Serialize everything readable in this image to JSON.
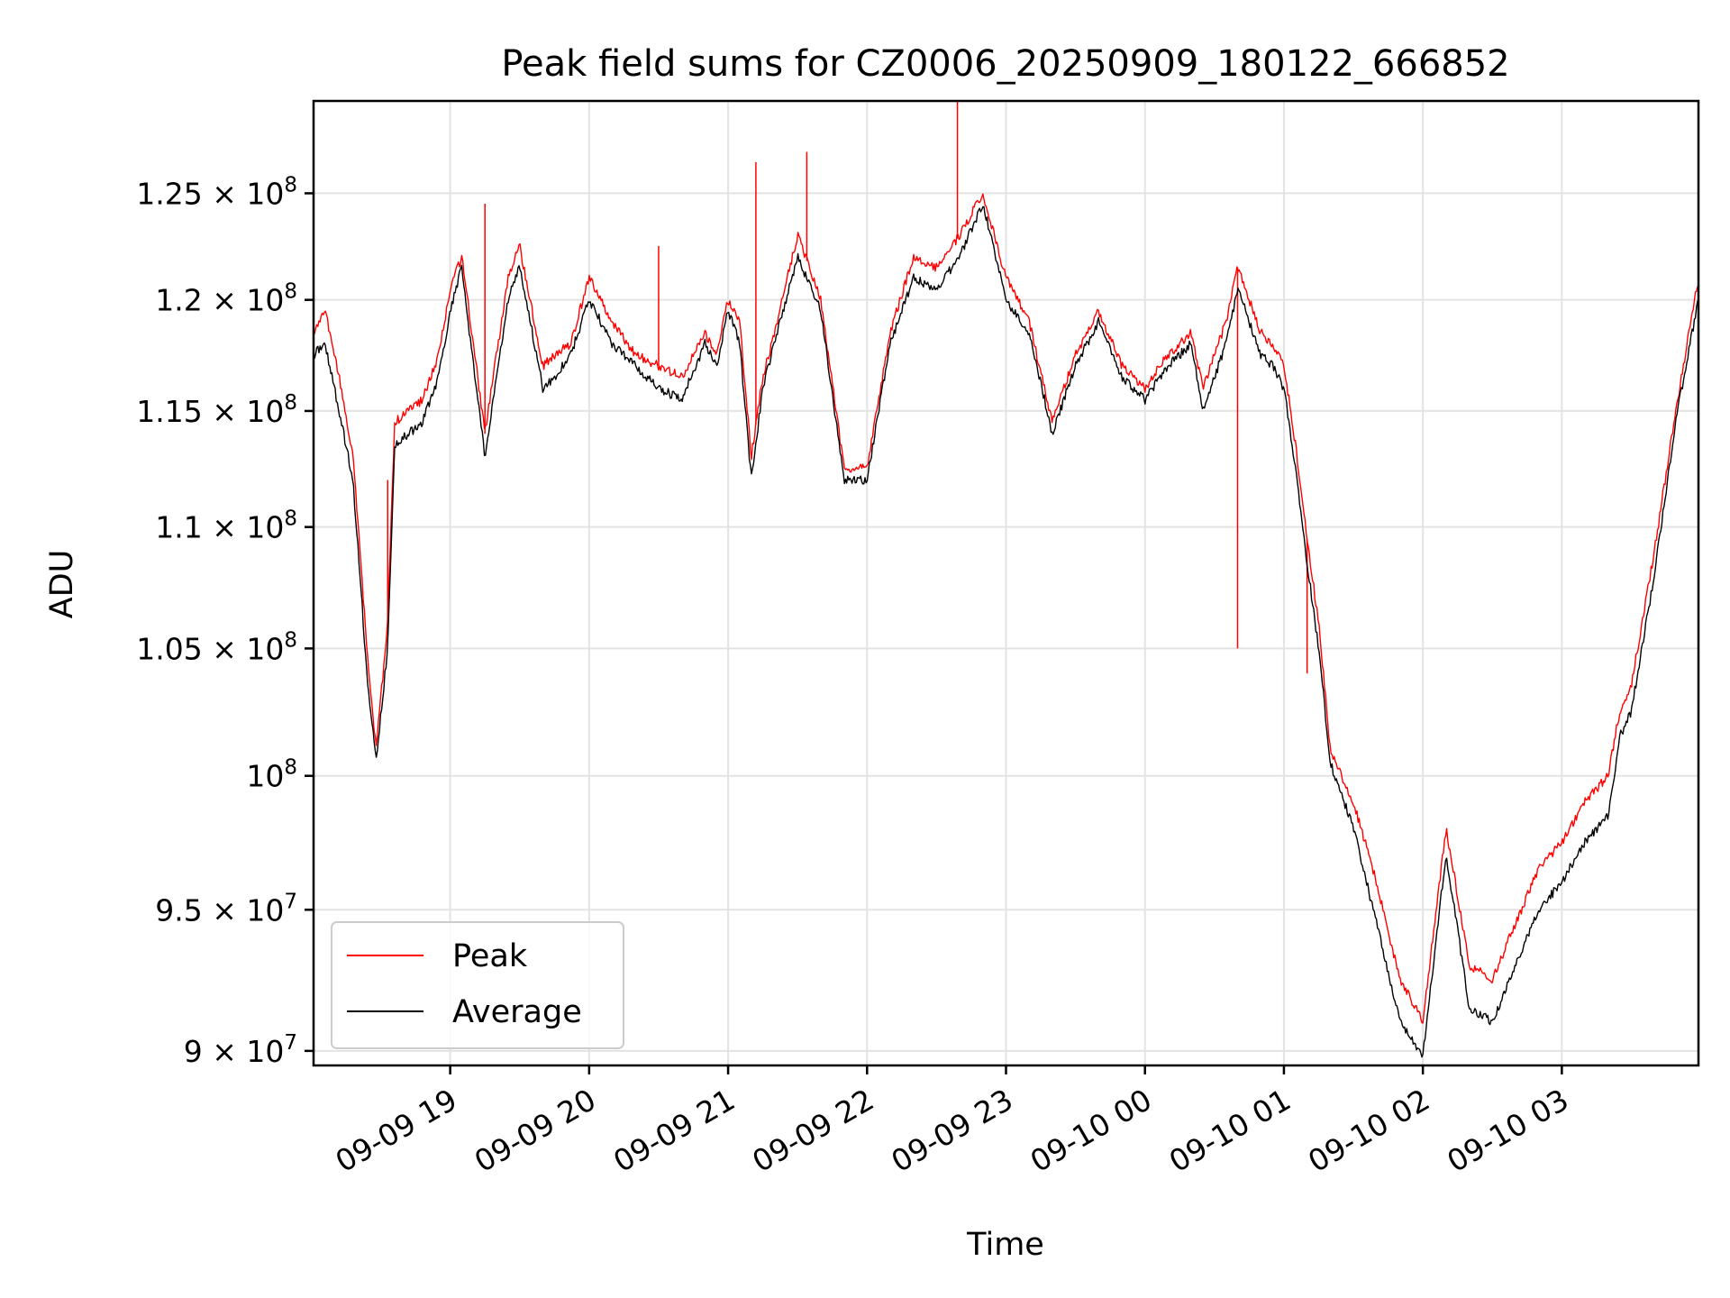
{
  "chart_data": {
    "type": "line",
    "title": "Peak field sums for CZ0006_20250909_180122_666852",
    "xlabel": "Time",
    "ylabel": "ADU",
    "y_scale": "log",
    "xlim": [
      "2025-09-09 18:01",
      "2025-09-10 03:59"
    ],
    "ylim": [
      89500000,
      129500000
    ],
    "grid": true,
    "legend_position": "lower-left",
    "x_ticks": [
      {
        "value": "2025-09-09 19:00",
        "label": "09-09 19"
      },
      {
        "value": "2025-09-09 20:00",
        "label": "09-09 20"
      },
      {
        "value": "2025-09-09 21:00",
        "label": "09-09 21"
      },
      {
        "value": "2025-09-09 22:00",
        "label": "09-09 22"
      },
      {
        "value": "2025-09-09 23:00",
        "label": "09-09 23"
      },
      {
        "value": "2025-09-10 00:00",
        "label": "09-10 00"
      },
      {
        "value": "2025-09-10 01:00",
        "label": "09-10 01"
      },
      {
        "value": "2025-09-10 02:00",
        "label": "09-10 02"
      },
      {
        "value": "2025-09-10 03:00",
        "label": "09-10 03"
      }
    ],
    "y_ticks": [
      {
        "value": 90000000,
        "mantissa": "9",
        "exponent": "7"
      },
      {
        "value": 95000000,
        "mantissa": "9.5",
        "exponent": "7"
      },
      {
        "value": 100000000,
        "mantissa": "",
        "exponent": "8"
      },
      {
        "value": 105000000,
        "mantissa": "1.05",
        "exponent": "8"
      },
      {
        "value": 110000000,
        "mantissa": "1.1",
        "exponent": "8"
      },
      {
        "value": 115000000,
        "mantissa": "1.15",
        "exponent": "8"
      },
      {
        "value": 120000000,
        "mantissa": "1.2",
        "exponent": "8"
      },
      {
        "value": 125000000,
        "mantissa": "1.25",
        "exponent": "8"
      }
    ],
    "series": [
      {
        "name": "Peak",
        "color": "#ff0000",
        "x": [
          "2025-09-09 18:01",
          "2025-09-09 18:06",
          "2025-09-09 18:12",
          "2025-09-09 18:18",
          "2025-09-09 18:24",
          "2025-09-09 18:28",
          "2025-09-09 18:33",
          "2025-09-09 18:36",
          "2025-09-09 18:48",
          "2025-09-09 18:55",
          "2025-09-09 19:00",
          "2025-09-09 19:05",
          "2025-09-09 19:10",
          "2025-09-09 19:15",
          "2025-09-09 19:25",
          "2025-09-09 19:30",
          "2025-09-09 19:40",
          "2025-09-09 19:45",
          "2025-09-09 19:52",
          "2025-09-09 20:00",
          "2025-09-09 20:10",
          "2025-09-09 20:20",
          "2025-09-09 20:30",
          "2025-09-09 20:40",
          "2025-09-09 20:50",
          "2025-09-09 20:55",
          "2025-09-09 21:00",
          "2025-09-09 21:05",
          "2025-09-09 21:10",
          "2025-09-09 21:15",
          "2025-09-09 21:20",
          "2025-09-09 21:30",
          "2025-09-09 21:40",
          "2025-09-09 21:50",
          "2025-09-09 22:00",
          "2025-09-09 22:10",
          "2025-09-09 22:20",
          "2025-09-09 22:30",
          "2025-09-09 22:40",
          "2025-09-09 22:50",
          "2025-09-09 23:00",
          "2025-09-09 23:10",
          "2025-09-09 23:20",
          "2025-09-09 23:30",
          "2025-09-09 23:40",
          "2025-09-09 23:50",
          "2025-09-10 00:00",
          "2025-09-10 00:10",
          "2025-09-10 00:20",
          "2025-09-10 00:25",
          "2025-09-10 00:35",
          "2025-09-10 00:40",
          "2025-09-10 00:50",
          "2025-09-10 00:55",
          "2025-09-10 01:00",
          "2025-09-10 01:05",
          "2025-09-10 01:10",
          "2025-09-10 01:15",
          "2025-09-10 01:20",
          "2025-09-10 01:30",
          "2025-09-10 01:40",
          "2025-09-10 01:50",
          "2025-09-10 02:00",
          "2025-09-10 02:10",
          "2025-09-10 02:20",
          "2025-09-10 02:30",
          "2025-09-10 02:40",
          "2025-09-10 02:50",
          "2025-09-10 03:00",
          "2025-09-10 03:10",
          "2025-09-10 03:20",
          "2025-09-10 03:25",
          "2025-09-10 03:30",
          "2025-09-10 03:40",
          "2025-09-10 03:50",
          "2025-09-10 03:59"
        ],
        "y": [
          118500000,
          119500000,
          116500000,
          113000000,
          105000000,
          101000000,
          106000000,
          114500000,
          115500000,
          117500000,
          120500000,
          122000000,
          118000000,
          114000000,
          121000000,
          122500000,
          117000000,
          117500000,
          118000000,
          121000000,
          119000000,
          117500000,
          117000000,
          116500000,
          118500000,
          117500000,
          120000000,
          119000000,
          113000000,
          116500000,
          118500000,
          123000000,
          120000000,
          112500000,
          112500000,
          118500000,
          122000000,
          121500000,
          123000000,
          125000000,
          121000000,
          119000000,
          114500000,
          117500000,
          119500000,
          117000000,
          116000000,
          117500000,
          118500000,
          116000000,
          119000000,
          121500000,
          118500000,
          118000000,
          117000000,
          113500000,
          109500000,
          106000000,
          101000000,
          99000000,
          96000000,
          92500000,
          91000000,
          98000000,
          93000000,
          92500000,
          94500000,
          96500000,
          97500000,
          99000000,
          100000000,
          102500000,
          103500000,
          109000000,
          115500000,
          121000000
        ],
        "spikes": [
          {
            "x": "2025-09-09 18:33",
            "y": 112000000
          },
          {
            "x": "2025-09-09 19:15",
            "y": 124500000
          },
          {
            "x": "2025-09-09 20:30",
            "y": 122500000
          },
          {
            "x": "2025-09-09 21:12",
            "y": 126500000
          },
          {
            "x": "2025-09-09 21:34",
            "y": 127000000
          },
          {
            "x": "2025-09-09 22:39",
            "y": 129500000
          },
          {
            "x": "2025-09-10 00:40",
            "y": 105000000
          },
          {
            "x": "2025-09-10 01:10",
            "y": 104000000
          }
        ]
      },
      {
        "name": "Average",
        "color": "#000000",
        "x": [
          "2025-09-09 18:01",
          "2025-09-09 18:06",
          "2025-09-09 18:12",
          "2025-09-09 18:18",
          "2025-09-09 18:24",
          "2025-09-09 18:28",
          "2025-09-09 18:33",
          "2025-09-09 18:36",
          "2025-09-09 18:48",
          "2025-09-09 18:55",
          "2025-09-09 19:00",
          "2025-09-09 19:05",
          "2025-09-09 19:10",
          "2025-09-09 19:15",
          "2025-09-09 19:25",
          "2025-09-09 19:30",
          "2025-09-09 19:40",
          "2025-09-09 19:45",
          "2025-09-09 19:52",
          "2025-09-09 20:00",
          "2025-09-09 20:10",
          "2025-09-09 20:20",
          "2025-09-09 20:30",
          "2025-09-09 20:40",
          "2025-09-09 20:50",
          "2025-09-09 20:55",
          "2025-09-09 21:00",
          "2025-09-09 21:05",
          "2025-09-09 21:10",
          "2025-09-09 21:15",
          "2025-09-09 21:20",
          "2025-09-09 21:30",
          "2025-09-09 21:40",
          "2025-09-09 21:50",
          "2025-09-09 22:00",
          "2025-09-09 22:10",
          "2025-09-09 22:20",
          "2025-09-09 22:30",
          "2025-09-09 22:40",
          "2025-09-09 22:50",
          "2025-09-09 23:00",
          "2025-09-09 23:10",
          "2025-09-09 23:20",
          "2025-09-09 23:30",
          "2025-09-09 23:40",
          "2025-09-09 23:50",
          "2025-09-10 00:00",
          "2025-09-10 00:10",
          "2025-09-10 00:20",
          "2025-09-10 00:25",
          "2025-09-10 00:35",
          "2025-09-10 00:40",
          "2025-09-10 00:50",
          "2025-09-10 00:55",
          "2025-09-10 01:00",
          "2025-09-10 01:05",
          "2025-09-10 01:10",
          "2025-09-10 01:15",
          "2025-09-10 01:20",
          "2025-09-10 01:30",
          "2025-09-10 01:40",
          "2025-09-10 01:50",
          "2025-09-10 02:00",
          "2025-09-10 02:10",
          "2025-09-10 02:20",
          "2025-09-10 02:30",
          "2025-09-10 02:40",
          "2025-09-10 02:50",
          "2025-09-10 03:00",
          "2025-09-10 03:10",
          "2025-09-10 03:20",
          "2025-09-10 03:25",
          "2025-09-10 03:30",
          "2025-09-10 03:40",
          "2025-09-10 03:50",
          "2025-09-10 03:59"
        ],
        "y": [
          117500000,
          118000000,
          115000000,
          112000000,
          104000000,
          100500000,
          105000000,
          113500000,
          114500000,
          116500000,
          119500000,
          121500000,
          117000000,
          113000000,
          120000000,
          121500000,
          116000000,
          116500000,
          117500000,
          120000000,
          118000000,
          117000000,
          116000000,
          115500000,
          118000000,
          117000000,
          119500000,
          118000000,
          112000000,
          116000000,
          118000000,
          122000000,
          119500000,
          112000000,
          112000000,
          118000000,
          121000000,
          120500000,
          122000000,
          124500000,
          120000000,
          118500000,
          114000000,
          117000000,
          119000000,
          116500000,
          115500000,
          117000000,
          118000000,
          115000000,
          118000000,
          120500000,
          117500000,
          117000000,
          116000000,
          112500000,
          108500000,
          105000000,
          100500000,
          98000000,
          94500000,
          91000000,
          89800000,
          97000000,
          91500000,
          91000000,
          93000000,
          95000000,
          96000000,
          97500000,
          98500000,
          101500000,
          102500000,
          108000000,
          115000000,
          120000000
        ]
      }
    ]
  }
}
